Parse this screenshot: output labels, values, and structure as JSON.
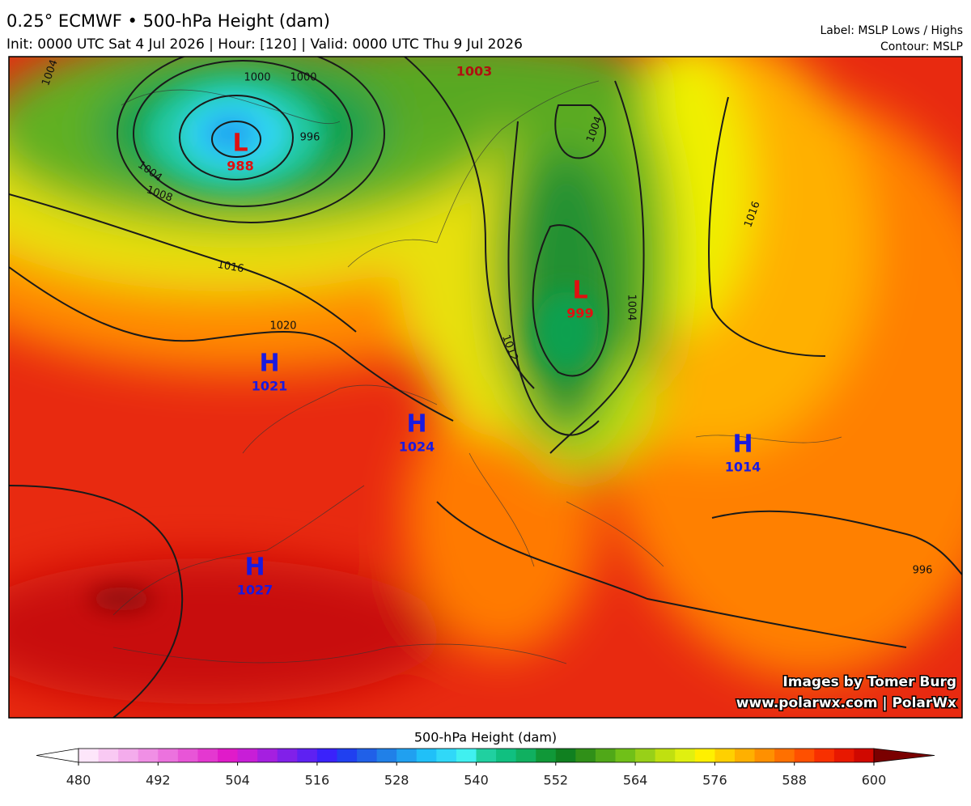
{
  "header": {
    "title": "0.25° ECMWF • 500-hPa Height (dam)",
    "subtitle": "Init: 0000 UTC Sat 4 Jul 2026 | Hour: [120] | Valid: 0000 UTC Thu 9 Jul 2026",
    "label_note": "Label: MSLP Lows / Highs",
    "contour_note": "Contour: MSLP"
  },
  "map": {
    "pressure_centers": [
      {
        "symbol": "L",
        "value": 988
      },
      {
        "symbol": "L",
        "value": 999
      },
      {
        "symbol": "H",
        "value": 1021
      },
      {
        "symbol": "H",
        "value": 1024
      },
      {
        "symbol": "H",
        "value": 1014
      },
      {
        "symbol": "H",
        "value": 1027
      }
    ],
    "pressure_labels": [
      1003
    ],
    "contour_labels": [
      1000,
      1000,
      996,
      1004,
      1004,
      1008,
      1016,
      1020,
      1012,
      1004,
      1016,
      1004,
      996
    ]
  },
  "credits": [
    "Images by Tomer Burg",
    "www.polarwx.com | PolarWx"
  ],
  "colorbar": {
    "title": "500-hPa Height (dam)",
    "min": 480,
    "max": 600,
    "step": 3,
    "ticks": [
      480,
      492,
      504,
      516,
      528,
      540,
      552,
      564,
      576,
      588,
      600
    ],
    "under_color": "#ffffff",
    "over_color": "#7a0000",
    "colors": [
      "#fde6fa",
      "#f9c9f3",
      "#f4acec",
      "#f08fe5",
      "#ec72de",
      "#e855d7",
      "#e438d0",
      "#e01bc9",
      "#c81ed7",
      "#a51fe0",
      "#8120e9",
      "#5e21f2",
      "#3a22fb",
      "#2040f0",
      "#2060e8",
      "#2080e8",
      "#20a0f0",
      "#20c0f8",
      "#30d8f8",
      "#40f0f0",
      "#20d0a0",
      "#10c080",
      "#10b060",
      "#109838",
      "#108020",
      "#309018",
      "#50a818",
      "#70c018",
      "#98d018",
      "#c0e010",
      "#e0f010",
      "#fff000",
      "#ffd000",
      "#ffb000",
      "#ff9000",
      "#ff7000",
      "#ff5000",
      "#f83000",
      "#e81800",
      "#d00800"
    ]
  }
}
